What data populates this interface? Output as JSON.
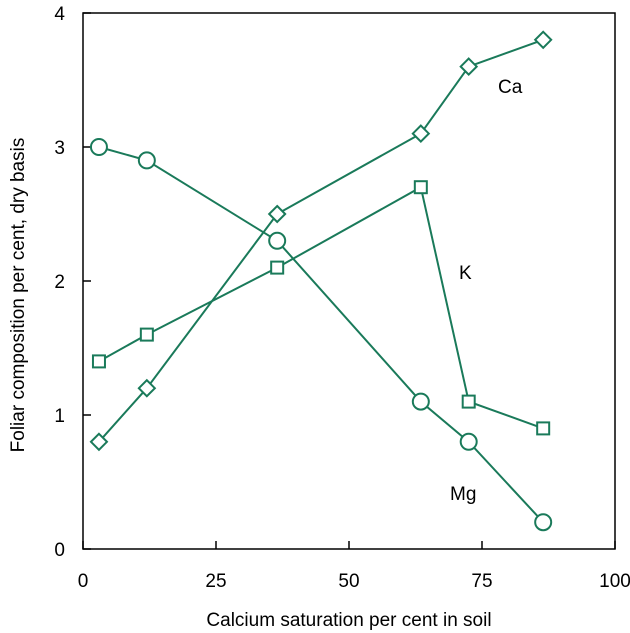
{
  "chart_data": {
    "type": "line",
    "title": "",
    "xlabel": "Calcium saturation per cent in soil",
    "ylabel": "Foliar composition per cent, dry basis",
    "xlim": [
      0,
      100
    ],
    "ylim": [
      0,
      4
    ],
    "xticks": [
      0,
      25,
      50,
      75,
      100
    ],
    "yticks": [
      0,
      1,
      2,
      3,
      4
    ],
    "xtick_labels": [
      "0",
      "25",
      "50",
      "75",
      "100"
    ],
    "ytick_labels": [
      "0",
      "1",
      "2",
      "3",
      "4"
    ],
    "grid": false,
    "line_color": "#1a7a5a",
    "series": [
      {
        "name": "Ca",
        "marker": "diamond",
        "x": [
          3,
          12,
          36.5,
          63.5,
          72.5,
          86.5
        ],
        "y": [
          0.8,
          1.2,
          2.5,
          3.1,
          3.6,
          3.8
        ]
      },
      {
        "name": "K",
        "marker": "square",
        "x": [
          3,
          12,
          36.5,
          63.5,
          72.5,
          86.5
        ],
        "y": [
          1.4,
          1.6,
          2.1,
          2.7,
          1.1,
          0.9
        ]
      },
      {
        "name": "Mg",
        "marker": "circle",
        "x": [
          3,
          12,
          36.5,
          63.5,
          72.5,
          86.5
        ],
        "y": [
          3.0,
          2.9,
          2.3,
          1.1,
          0.8,
          0.2
        ]
      }
    ]
  }
}
